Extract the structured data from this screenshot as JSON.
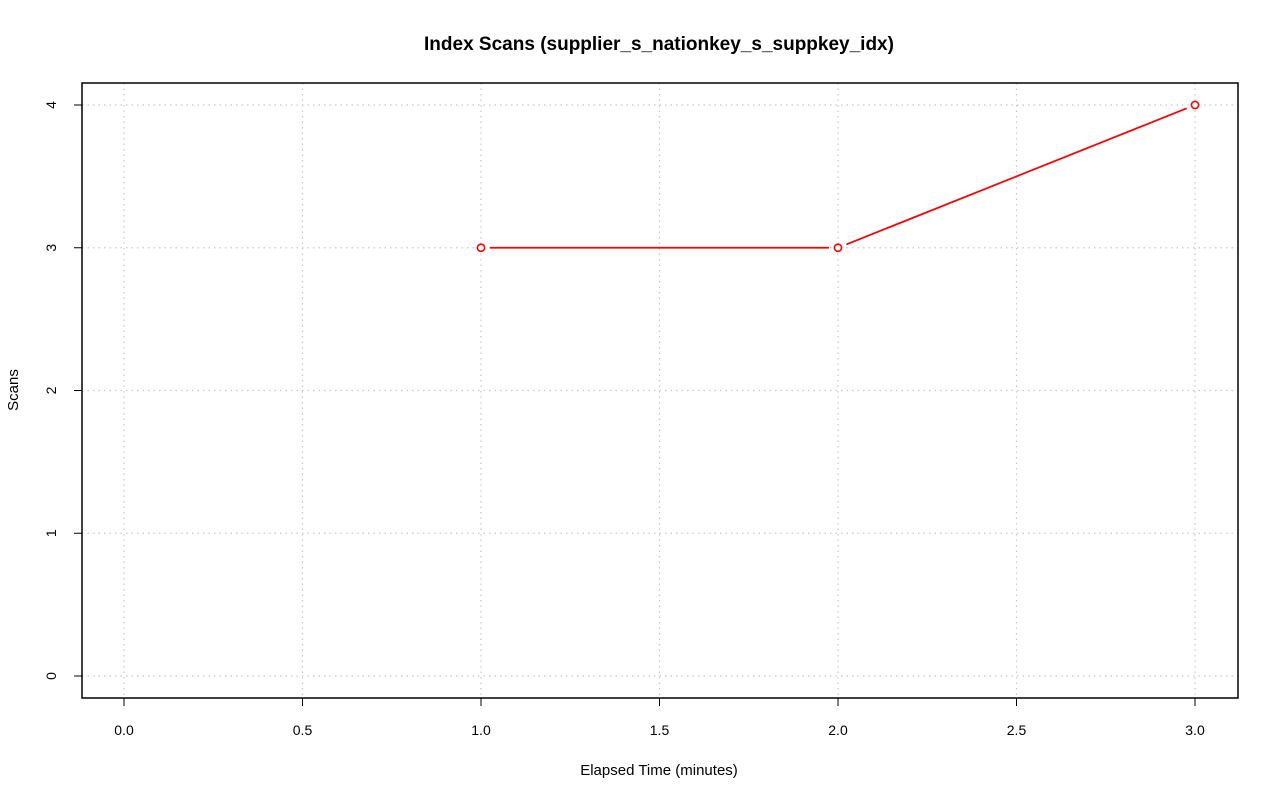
{
  "chart_data": {
    "type": "line",
    "title": "Index Scans (supplier_s_nationkey_s_suppkey_idx)",
    "xlabel": "Elapsed Time (minutes)",
    "ylabel": "Scans",
    "x_ticks": [
      "0.0",
      "0.5",
      "1.0",
      "1.5",
      "2.0",
      "2.5",
      "3.0"
    ],
    "y_ticks": [
      "0",
      "1",
      "2",
      "3",
      "4"
    ],
    "xlim": [
      0,
      3
    ],
    "ylim": [
      0,
      4
    ],
    "grid": true,
    "series": [
      {
        "color": "#ff0000",
        "x": [
          1.0,
          2.0,
          3.0
        ],
        "y": [
          3,
          3,
          4
        ]
      }
    ]
  }
}
